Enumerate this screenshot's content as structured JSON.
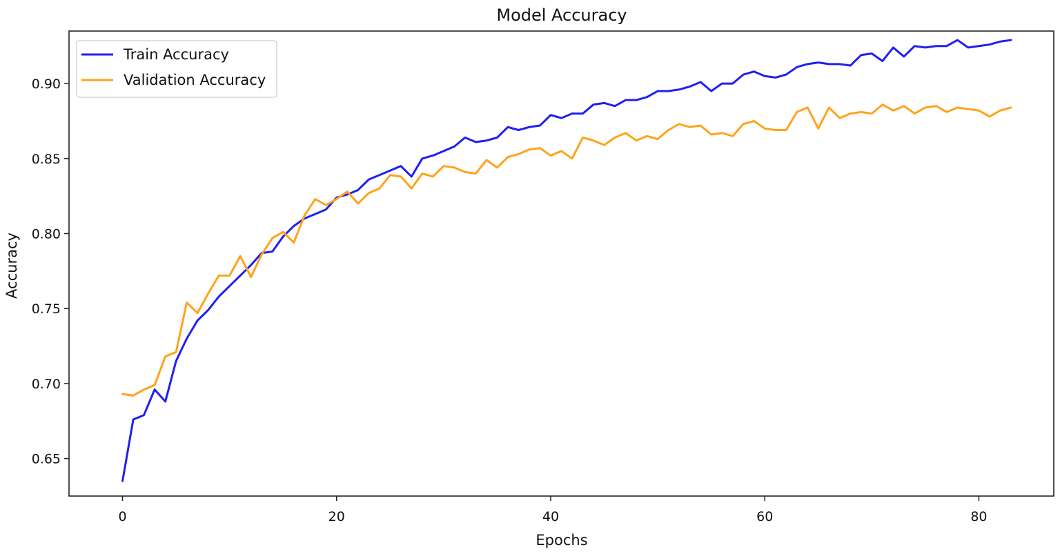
{
  "chart_data": {
    "type": "line",
    "title": "Model Accuracy",
    "xlabel": "Epochs",
    "ylabel": "Accuracy",
    "xlim": [
      -5,
      87
    ],
    "ylim": [
      0.625,
      0.935
    ],
    "xticks": [
      0,
      20,
      40,
      60,
      80
    ],
    "xtick_labels": [
      "0",
      "20",
      "40",
      "60",
      "80"
    ],
    "yticks": [
      0.65,
      0.7,
      0.75,
      0.8,
      0.85,
      0.9
    ],
    "ytick_labels": [
      "0.65",
      "0.70",
      "0.75",
      "0.80",
      "0.85",
      "0.90"
    ],
    "grid": false,
    "legend_position": "top-left",
    "x": [
      0,
      1,
      2,
      3,
      4,
      5,
      6,
      7,
      8,
      9,
      10,
      11,
      12,
      13,
      14,
      15,
      16,
      17,
      18,
      19,
      20,
      21,
      22,
      23,
      24,
      25,
      26,
      27,
      28,
      29,
      30,
      31,
      32,
      33,
      34,
      35,
      36,
      37,
      38,
      39,
      40,
      41,
      42,
      43,
      44,
      45,
      46,
      47,
      48,
      49,
      50,
      51,
      52,
      53,
      54,
      55,
      56,
      57,
      58,
      59,
      60,
      61,
      62,
      63,
      64,
      65,
      66,
      67,
      68,
      69,
      70,
      71,
      72,
      73,
      74,
      75,
      76,
      77,
      78,
      79,
      80,
      81,
      82,
      83
    ],
    "series": [
      {
        "name": "Train Accuracy",
        "color": "#1f1ff0",
        "values": [
          0.635,
          0.676,
          0.679,
          0.696,
          0.688,
          0.715,
          0.73,
          0.742,
          0.749,
          0.758,
          0.765,
          0.772,
          0.779,
          0.787,
          0.788,
          0.798,
          0.805,
          0.81,
          0.813,
          0.816,
          0.824,
          0.826,
          0.829,
          0.836,
          0.839,
          0.842,
          0.845,
          0.838,
          0.85,
          0.852,
          0.855,
          0.858,
          0.864,
          0.861,
          0.862,
          0.864,
          0.871,
          0.869,
          0.871,
          0.872,
          0.879,
          0.877,
          0.88,
          0.88,
          0.886,
          0.887,
          0.885,
          0.889,
          0.889,
          0.891,
          0.895,
          0.895,
          0.896,
          0.898,
          0.901,
          0.895,
          0.9,
          0.9,
          0.906,
          0.908,
          0.905,
          0.904,
          0.906,
          0.911,
          0.913,
          0.914,
          0.913,
          0.913,
          0.912,
          0.919,
          0.92,
          0.915,
          0.924,
          0.918,
          0.925,
          0.924,
          0.925,
          0.925,
          0.929,
          0.924,
          0.925,
          0.926,
          0.928,
          0.929
        ]
      },
      {
        "name": "Validation Accuracy",
        "color": "#ffa31a",
        "values": [
          0.693,
          0.692,
          0.696,
          0.699,
          0.718,
          0.721,
          0.754,
          0.747,
          0.76,
          0.772,
          0.772,
          0.785,
          0.771,
          0.786,
          0.797,
          0.801,
          0.794,
          0.812,
          0.823,
          0.819,
          0.823,
          0.828,
          0.82,
          0.827,
          0.83,
          0.839,
          0.838,
          0.83,
          0.84,
          0.838,
          0.845,
          0.844,
          0.841,
          0.84,
          0.849,
          0.844,
          0.851,
          0.853,
          0.856,
          0.857,
          0.852,
          0.855,
          0.85,
          0.864,
          0.862,
          0.859,
          0.864,
          0.867,
          0.862,
          0.865,
          0.863,
          0.869,
          0.873,
          0.871,
          0.872,
          0.866,
          0.867,
          0.865,
          0.873,
          0.875,
          0.87,
          0.869,
          0.869,
          0.881,
          0.884,
          0.87,
          0.884,
          0.877,
          0.88,
          0.881,
          0.88,
          0.886,
          0.882,
          0.885,
          0.88,
          0.884,
          0.885,
          0.881,
          0.884,
          0.883,
          0.882,
          0.878,
          0.882,
          0.884
        ]
      }
    ]
  }
}
